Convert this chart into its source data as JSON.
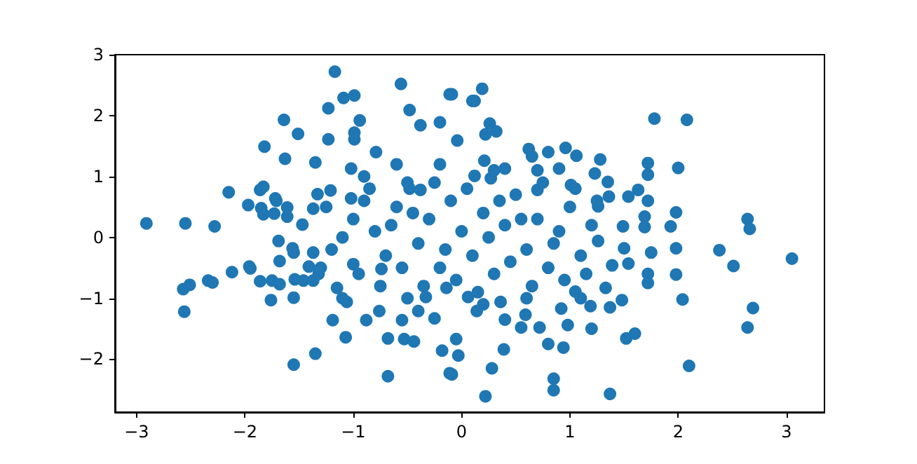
{
  "chart_data": {
    "type": "scatter",
    "marker": "circle",
    "grid": false,
    "xlim": [
      -3.2,
      3.35
    ],
    "ylim": [
      -2.87,
      3.0
    ],
    "xticks": [
      -3,
      -2,
      -1,
      0,
      1,
      2,
      3
    ],
    "yticks": [
      -2,
      -1,
      0,
      1,
      2,
      3
    ],
    "series": [
      {
        "color": "#1f77b4",
        "x": [
          -2.91,
          -2.55,
          -2.28,
          -2.15,
          -2.57,
          -2.51,
          -2.56,
          -2.34,
          -2.3,
          -2.12,
          -1.96,
          -1.97,
          -1.83,
          -1.82,
          -1.64,
          -1.51,
          -1.71,
          -1.85,
          -1.73,
          -1.55,
          -1.55,
          -1.35,
          -1.75,
          -1.68,
          -1.55,
          -1.46,
          -1.41,
          -1.17,
          -1.63,
          -1.35,
          -1.23,
          -1.23,
          -1.09,
          -0.99,
          -0.94,
          -0.99,
          -0.99,
          -1.02,
          -0.79,
          -0.56,
          -0.48,
          -0.11,
          0.1,
          -0.38,
          -0.2,
          -0.04,
          -0.38,
          -0.48,
          -1.86,
          -1.72,
          -1.83,
          -1.61,
          -1.61,
          -1.37,
          -1.47,
          -1.33,
          -1.21,
          -1.02,
          0.19,
          0.12,
          0.26,
          0.22,
          0.32,
          0.21,
          1.78,
          2.08,
          0.62,
          0.65,
          0.8,
          0.96,
          1.06,
          0.9,
          1.28,
          1.23,
          1.35,
          1.72,
          1.72,
          2.0,
          1.63,
          1.54,
          1.36,
          1.26,
          1.72,
          1.98,
          1.93,
          1.69,
          1.69,
          1.49,
          2.64,
          2.66,
          0.4,
          0.12,
          0.27,
          1.01,
          0.7,
          -0.09,
          -1.95,
          -1.86,
          -1.76,
          -1.68,
          -1.54,
          -1.07,
          -1.19,
          -0.68,
          -0.68,
          -0.53,
          -0.44,
          -0.55,
          -0.88,
          -0.18,
          -0.05,
          -0.11,
          -0.03,
          -1.37,
          -1.32,
          -1.69,
          -1.56,
          -1.37,
          -1.15,
          -1.0,
          -0.74,
          -0.33,
          -0.14,
          -1.06,
          -0.76,
          -0.4,
          -0.25,
          3.05,
          2.38,
          2.51,
          2.69,
          2.64,
          2.04,
          2.1,
          1.37,
          0.85,
          0.85,
          0.22,
          0.28,
          0.39,
          -0.09,
          0.94,
          0.8,
          1.2,
          1.52,
          1.6,
          0.98,
          0.55,
          0.72,
          0.4,
          0.59,
          0.14,
          1.19,
          1.37,
          1.48,
          1.98,
          1.98,
          1.72,
          1.72,
          1.75,
          1.5,
          1.39,
          1.54,
          1.33,
          1.05,
          0.92,
          0.36,
          0.06,
          1.26,
          -1.0,
          -0.9,
          -0.8,
          -0.7,
          -0.6,
          -0.5,
          -0.4,
          -0.3,
          -0.2,
          -0.1,
          0.0,
          0.1,
          0.2,
          0.3,
          0.4,
          0.5,
          0.6,
          0.7,
          0.8,
          0.9,
          1.0,
          1.1,
          1.2,
          -1.2,
          -1.1,
          -0.95,
          -0.85,
          -0.75,
          -0.65,
          -0.55,
          -0.45,
          -0.35,
          -0.25,
          -0.15,
          -0.05,
          0.05,
          0.15,
          0.25,
          0.35,
          0.45,
          0.55,
          0.65,
          0.75,
          0.85,
          0.95,
          1.05,
          1.15,
          1.25,
          -1.25,
          -1.3,
          -0.9,
          -0.6,
          -0.2,
          0.3,
          0.7,
          -0.5,
          0.2,
          0.6,
          -1.1,
          1.1
        ],
        "values": [
          0.23,
          0.23,
          0.18,
          0.74,
          -0.85,
          -0.78,
          -1.22,
          -0.71,
          -0.74,
          -0.57,
          -0.48,
          0.53,
          0.83,
          1.49,
          1.93,
          1.7,
          0.6,
          0.48,
          0.39,
          -0.99,
          -2.09,
          -1.91,
          -0.71,
          -0.39,
          -0.25,
          -0.71,
          -0.48,
          2.72,
          1.29,
          1.23,
          1.61,
          2.12,
          2.29,
          2.33,
          1.92,
          1.72,
          1.61,
          1.13,
          1.4,
          2.52,
          2.09,
          2.35,
          2.24,
          1.84,
          1.89,
          1.59,
          0.78,
          0.8,
          0.78,
          0.64,
          0.38,
          0.49,
          0.34,
          0.47,
          0.21,
          0.71,
          0.77,
          0.64,
          2.44,
          2.24,
          1.87,
          1.69,
          1.74,
          1.26,
          1.95,
          1.93,
          1.45,
          1.33,
          1.4,
          1.47,
          1.34,
          1.13,
          1.28,
          1.05,
          0.91,
          1.22,
          1.03,
          1.14,
          0.78,
          0.67,
          0.67,
          0.51,
          0.6,
          0.41,
          0.18,
          0.34,
          0.17,
          0.18,
          0.3,
          0.14,
          1.13,
          1.01,
          0.97,
          0.86,
          0.78,
          2.35,
          -0.51,
          -0.72,
          -1.03,
          -0.77,
          -0.69,
          -1.64,
          -1.36,
          -2.28,
          -1.66,
          -1.67,
          -1.71,
          -1.36,
          -1.36,
          -1.86,
          -1.67,
          -2.23,
          -1.94,
          -0.71,
          -0.6,
          -0.06,
          -0.18,
          -0.25,
          -0.83,
          -0.44,
          -0.52,
          -0.98,
          -0.83,
          -1.06,
          -1.21,
          -1.21,
          -1.33,
          -0.35,
          -0.21,
          -0.47,
          -1.16,
          -1.48,
          -1.02,
          -2.11,
          -2.57,
          -2.32,
          -2.51,
          -2.61,
          -2.15,
          -1.84,
          -2.25,
          -1.81,
          -1.75,
          -1.5,
          -1.66,
          -1.58,
          -1.44,
          -1.48,
          -1.48,
          -1.35,
          -1.27,
          -1.21,
          -1.13,
          -1.15,
          -1.03,
          -0.18,
          -0.61,
          -0.6,
          -0.75,
          -0.25,
          -0.18,
          -0.46,
          -0.43,
          -0.83,
          -0.89,
          -1.17,
          -1.06,
          -0.98,
          -0.06,
          0.3,
          0.6,
          0.1,
          -0.3,
          0.5,
          0.9,
          -0.1,
          0.3,
          -0.5,
          0.6,
          0.1,
          -0.3,
          0.4,
          -0.6,
          0.2,
          0.7,
          -0.2,
          0.3,
          -0.5,
          0.1,
          0.5,
          -0.3,
          0.2,
          -0.2,
          0.0,
          -0.6,
          0.8,
          -0.8,
          0.2,
          -0.5,
          0.4,
          -0.8,
          0.9,
          -0.2,
          -0.7,
          0.8,
          -0.9,
          0.0,
          0.6,
          -0.4,
          0.3,
          -0.8,
          0.9,
          -0.1,
          -0.7,
          0.8,
          -0.6,
          0.6,
          0.5,
          -0.5,
          1.0,
          1.2,
          1.2,
          1.1,
          1.1,
          -1.0,
          -1.1,
          -1.0,
          -1.0,
          -1.0
        ]
      }
    ]
  }
}
